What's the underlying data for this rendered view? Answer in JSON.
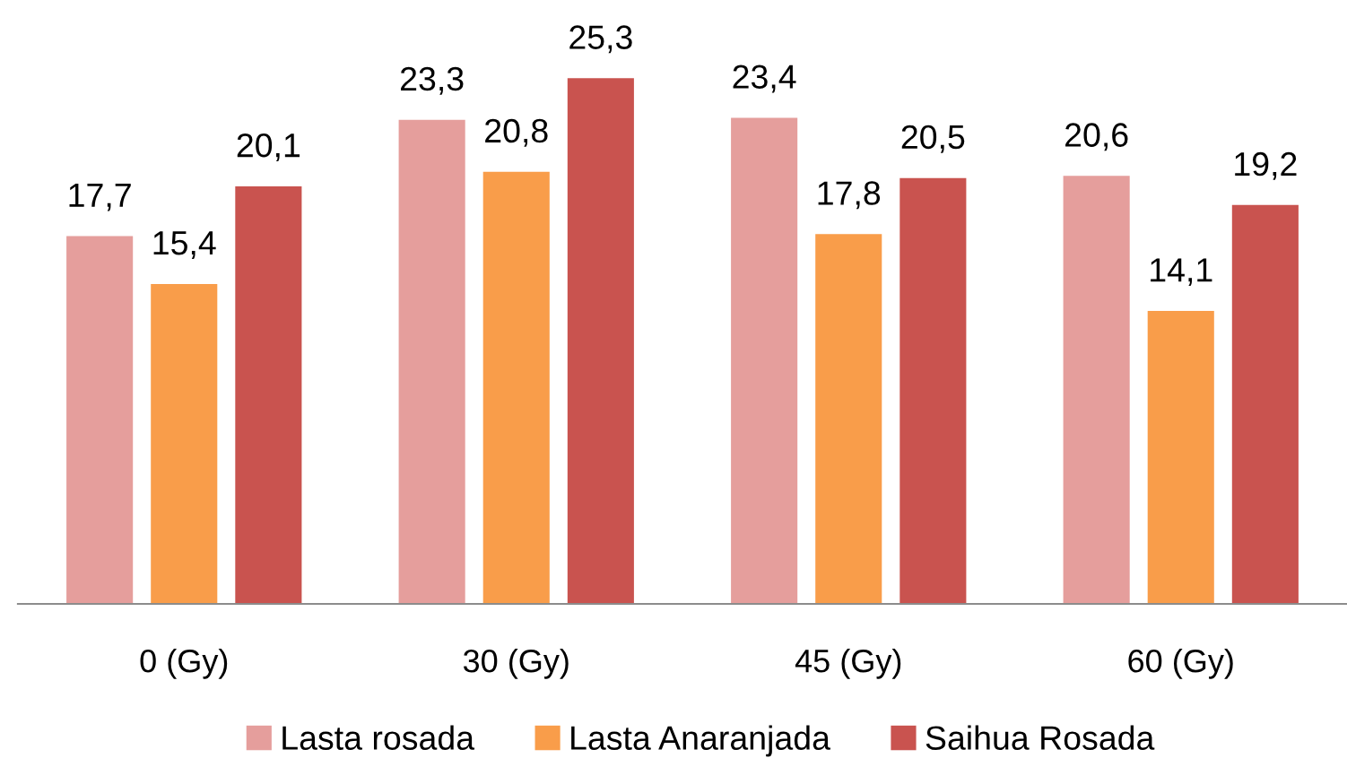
{
  "chart_data": {
    "type": "bar",
    "categories": [
      "0 (Gy)",
      "30 (Gy)",
      "45 (Gy)",
      "60 (Gy)"
    ],
    "series": [
      {
        "name": "Lasta rosada",
        "color": "#e59e9c",
        "values": [
          17.7,
          23.3,
          23.4,
          20.6
        ],
        "value_labels": [
          "17,7",
          "23,3",
          "23,4",
          "20,6"
        ]
      },
      {
        "name": "Lasta Anaranjada",
        "color": "#f99d4a",
        "values": [
          15.4,
          20.8,
          17.8,
          14.1
        ],
        "value_labels": [
          "15,4",
          "20,8",
          "17,8",
          "14,1"
        ]
      },
      {
        "name": "Saihua Rosada",
        "color": "#c9534f",
        "values": [
          20.1,
          25.3,
          20.5,
          19.2
        ],
        "value_labels": [
          "20,1",
          "25,3",
          "20,5",
          "19,2"
        ]
      }
    ],
    "tick_labels": "x",
    "grid": false,
    "legend": "bottom"
  }
}
